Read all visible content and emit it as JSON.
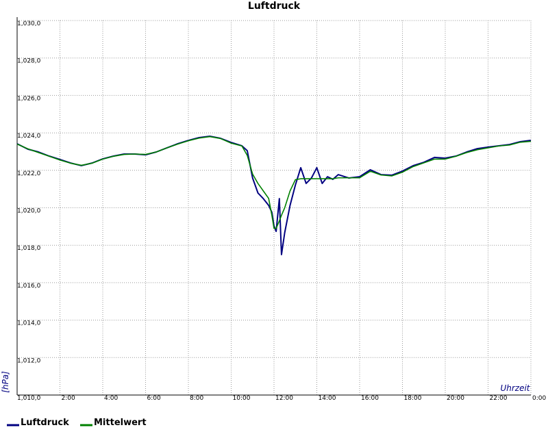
{
  "chart_data": {
    "type": "line",
    "title": "Luftdruck",
    "xlabel": "Uhrzeit",
    "ylabel": "[hPa]",
    "x": [
      0,
      0.5,
      1,
      1.5,
      2,
      2.5,
      3,
      3.5,
      4,
      4.5,
      5,
      5.5,
      6,
      6.5,
      7,
      7.5,
      8,
      8.5,
      9,
      9.5,
      10,
      10.5,
      10.75,
      11,
      11.25,
      11.5,
      11.75,
      11.9,
      12,
      12.1,
      12.25,
      12.35,
      12.5,
      12.75,
      13,
      13.25,
      13.5,
      13.75,
      14,
      14.25,
      14.5,
      14.75,
      15,
      15.5,
      16,
      16.5,
      17,
      17.5,
      18,
      18.5,
      19,
      19.5,
      20,
      20.5,
      21,
      21.5,
      22,
      22.5,
      23,
      23.5,
      24
    ],
    "series": [
      {
        "name": "Luftdruck",
        "color": "#000080",
        "values": [
          1023.42,
          1023.13,
          1022.98,
          1022.76,
          1022.58,
          1022.39,
          1022.25,
          1022.39,
          1022.61,
          1022.76,
          1022.87,
          1022.87,
          1022.83,
          1022.98,
          1023.2,
          1023.42,
          1023.6,
          1023.75,
          1023.82,
          1023.71,
          1023.49,
          1023.31,
          1023.05,
          1021.59,
          1020.79,
          1020.49,
          1020.13,
          1019.76,
          1019.03,
          1018.74,
          1020.49,
          1017.5,
          1018.67,
          1020.13,
          1021.22,
          1022.14,
          1021.3,
          1021.59,
          1022.14,
          1021.3,
          1021.66,
          1021.52,
          1021.77,
          1021.59,
          1021.66,
          1022.03,
          1021.77,
          1021.74,
          1021.96,
          1022.25,
          1022.43,
          1022.69,
          1022.65,
          1022.76,
          1022.98,
          1023.16,
          1023.24,
          1023.31,
          1023.38,
          1023.53,
          1023.6
        ]
      },
      {
        "name": "Mittelwert",
        "color": "#008000",
        "values": [
          1023.4,
          1023.15,
          1022.95,
          1022.75,
          1022.55,
          1022.38,
          1022.27,
          1022.38,
          1022.6,
          1022.75,
          1022.85,
          1022.87,
          1022.85,
          1022.98,
          1023.2,
          1023.4,
          1023.58,
          1023.72,
          1023.8,
          1023.7,
          1023.45,
          1023.3,
          1022.8,
          1021.8,
          1021.3,
          1020.9,
          1020.5,
          1019.6,
          1018.9,
          1018.9,
          1019.3,
          1019.6,
          1020.0,
          1020.9,
          1021.5,
          1021.55,
          1021.55,
          1021.55,
          1021.55,
          1021.55,
          1021.55,
          1021.55,
          1021.6,
          1021.6,
          1021.6,
          1021.95,
          1021.75,
          1021.7,
          1021.9,
          1022.2,
          1022.4,
          1022.6,
          1022.6,
          1022.75,
          1022.95,
          1023.1,
          1023.2,
          1023.3,
          1023.35,
          1023.5,
          1023.55
        ]
      }
    ],
    "xlim": [
      0,
      24
    ],
    "xticks": [
      {
        "value": 2,
        "label": "2:00"
      },
      {
        "value": 4,
        "label": "4:00"
      },
      {
        "value": 6,
        "label": "6:00"
      },
      {
        "value": 8,
        "label": "8:00"
      },
      {
        "value": 10,
        "label": "10:00"
      },
      {
        "value": 12,
        "label": "12:00"
      },
      {
        "value": 14,
        "label": "14:00"
      },
      {
        "value": 16,
        "label": "16:00"
      },
      {
        "value": 18,
        "label": "18:00"
      },
      {
        "value": 20,
        "label": "20:00"
      },
      {
        "value": 22,
        "label": "22:00"
      },
      {
        "value": 24,
        "label": "0:00"
      }
    ],
    "ylim": [
      1010,
      1030
    ],
    "yticks": [
      {
        "value": 1010,
        "label": "1,010,0"
      },
      {
        "value": 1012,
        "label": "1,012,0"
      },
      {
        "value": 1014,
        "label": "1,014,0"
      },
      {
        "value": 1016,
        "label": "1,016,0"
      },
      {
        "value": 1018,
        "label": "1,018,0"
      },
      {
        "value": 1020,
        "label": "1,020,0"
      },
      {
        "value": 1022,
        "label": "1,022,0"
      },
      {
        "value": 1024,
        "label": "1,024,0"
      },
      {
        "value": 1026,
        "label": "1,026,0"
      },
      {
        "value": 1028,
        "label": "1,028,0"
      },
      {
        "value": 1030,
        "label": "1,030,0"
      }
    ],
    "grid": true,
    "legend": "bottom"
  }
}
